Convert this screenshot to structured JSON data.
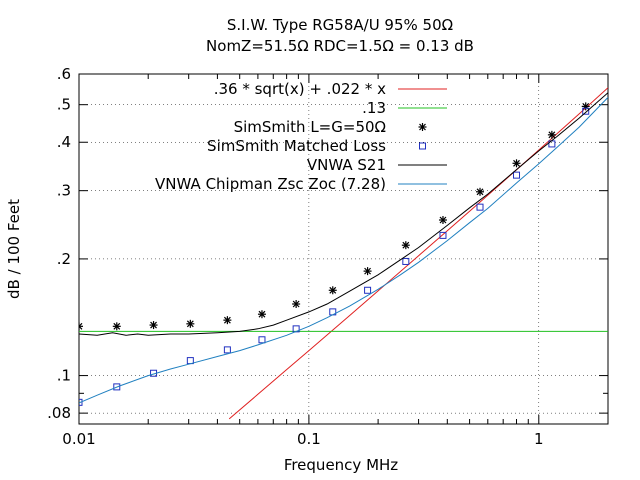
{
  "chart_data": {
    "type": "line",
    "title_lines": [
      "S.I.W. Type RG58A/U 95% 50Ω",
      "NomZ=51.5Ω  RDC=1.5Ω = 0.13 dB"
    ],
    "xlabel": "Frequency MHz",
    "ylabel": "dB / 100 Feet",
    "xscale": "log",
    "yscale": "log",
    "xlim": [
      0.01,
      2.0
    ],
    "ylim": [
      0.075,
      0.6
    ],
    "x_ticks": [
      {
        "value": 0.01,
        "label": "0.01"
      },
      {
        "value": 0.1,
        "label": "0.1"
      },
      {
        "value": 1,
        "label": "1"
      }
    ],
    "y_ticks": [
      {
        "value": 0.08,
        "label": ".08"
      },
      {
        "value": 0.1,
        "label": ".1"
      },
      {
        "value": 0.2,
        "label": ".2"
      },
      {
        "value": 0.3,
        "label": ".3"
      },
      {
        "value": 0.4,
        "label": ".4"
      },
      {
        "value": 0.5,
        "label": ".5"
      },
      {
        "value": 0.6,
        "label": ".6"
      }
    ],
    "legend_position": "top-right",
    "series": [
      {
        "name": ".36 * sqrt(x) + .022 * x",
        "style": "line",
        "color": "#e02020",
        "x": [
          0.045,
          0.06,
          0.08,
          0.1,
          0.15,
          0.2,
          0.3,
          0.4,
          0.5,
          0.7,
          1.0,
          1.5,
          2.0
        ],
        "y": [
          0.0773,
          0.0895,
          0.1036,
          0.116,
          0.1427,
          0.1654,
          0.2038,
          0.2365,
          0.2656,
          0.3166,
          0.382,
          0.4739,
          0.5531
        ]
      },
      {
        "name": ".13",
        "style": "line",
        "color": "#20c020",
        "x": [
          0.01,
          2.0
        ],
        "y": [
          0.13,
          0.13
        ]
      },
      {
        "name": "SimSmith L=G=50Ω",
        "style": "markers-star",
        "color": "#000000",
        "x": [
          0.01,
          0.0146,
          0.0211,
          0.0305,
          0.0442,
          0.0625,
          0.088,
          0.127,
          0.18,
          0.264,
          0.383,
          0.555,
          0.8,
          1.14,
          1.6
        ],
        "y": [
          0.134,
          0.134,
          0.135,
          0.136,
          0.139,
          0.144,
          0.153,
          0.166,
          0.186,
          0.217,
          0.252,
          0.298,
          0.353,
          0.418,
          0.495
        ]
      },
      {
        "name": "SimSmith Matched Loss",
        "style": "markers-square",
        "color": "#2030c0",
        "x": [
          0.01,
          0.0146,
          0.0211,
          0.0305,
          0.0442,
          0.0625,
          0.088,
          0.127,
          0.18,
          0.264,
          0.383,
          0.555,
          0.8,
          1.14,
          1.6
        ],
        "y": [
          0.0853,
          0.0935,
          0.1014,
          0.1093,
          0.1165,
          0.1237,
          0.132,
          0.146,
          0.166,
          0.197,
          0.23,
          0.272,
          0.329,
          0.396,
          0.481
        ]
      },
      {
        "name": "VNWA S21",
        "style": "line",
        "color": "#000000",
        "x": [
          0.01,
          0.012,
          0.014,
          0.016,
          0.018,
          0.02,
          0.025,
          0.03,
          0.04,
          0.05,
          0.06,
          0.07,
          0.08,
          0.1,
          0.12,
          0.15,
          0.2,
          0.25,
          0.3,
          0.4,
          0.5,
          0.6,
          0.8,
          1.0,
          1.2,
          1.5,
          2.0
        ],
        "y": [
          0.128,
          0.127,
          0.129,
          0.127,
          0.128,
          0.127,
          0.128,
          0.128,
          0.129,
          0.13,
          0.132,
          0.135,
          0.139,
          0.146,
          0.153,
          0.165,
          0.182,
          0.199,
          0.214,
          0.244,
          0.271,
          0.294,
          0.34,
          0.38,
          0.414,
          0.462,
          0.537
        ]
      },
      {
        "name": "VNWA Chipman Zsc Zoc (7.28)",
        "style": "line",
        "color": "#2080c0",
        "x": [
          0.01,
          0.012,
          0.015,
          0.02,
          0.025,
          0.03,
          0.04,
          0.05,
          0.06,
          0.08,
          0.1,
          0.12,
          0.15,
          0.2,
          0.25,
          0.3,
          0.4,
          0.5,
          0.6,
          0.8,
          1.0,
          1.2,
          1.5,
          2.0
        ],
        "y": [
          0.085,
          0.089,
          0.094,
          0.1,
          0.104,
          0.107,
          0.112,
          0.116,
          0.12,
          0.127,
          0.134,
          0.141,
          0.151,
          0.167,
          0.182,
          0.196,
          0.223,
          0.248,
          0.27,
          0.314,
          0.352,
          0.388,
          0.438,
          0.522
        ]
      }
    ]
  }
}
